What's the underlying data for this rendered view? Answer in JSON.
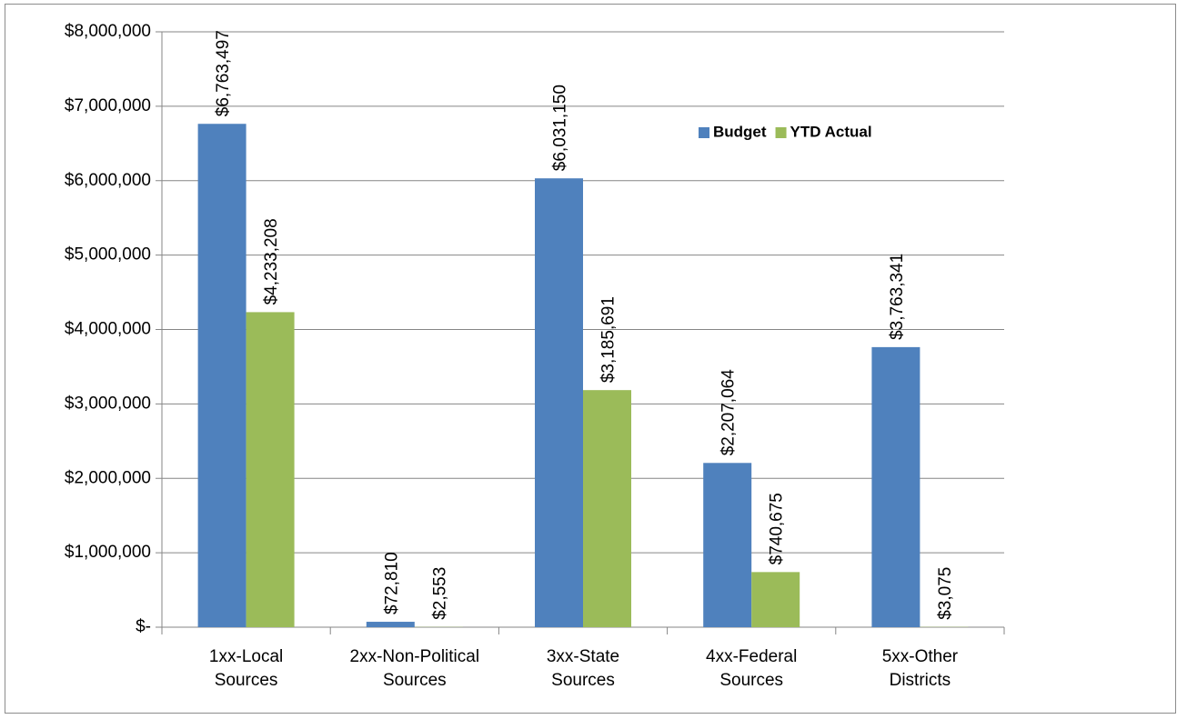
{
  "chart_data": {
    "type": "bar",
    "categories": [
      [
        "1xx-Local",
        "Sources"
      ],
      [
        "2xx-Non-Political",
        "Sources"
      ],
      [
        "3xx-State",
        "Sources"
      ],
      [
        "4xx-Federal",
        "Sources"
      ],
      [
        "5xx-Other",
        "Districts"
      ]
    ],
    "series": [
      {
        "name": "Budget",
        "color": "#4f81bd",
        "values": [
          6763497,
          72810,
          6031150,
          2207064,
          3763341
        ],
        "value_labels": [
          "$6,763,497",
          "$72,810",
          "$6,031,150",
          "$2,207,064",
          "$3,763,341"
        ]
      },
      {
        "name": "YTD Actual",
        "color": "#9bbb59",
        "values": [
          4233208,
          2553,
          3185691,
          740675,
          3075
        ],
        "value_labels": [
          "$4,233,208",
          "$2,553",
          "$3,185,691",
          "$740,675",
          "$3,075"
        ]
      }
    ],
    "ylim": [
      0,
      8000000
    ],
    "yticks": [
      {
        "value": 0,
        "label": "$-"
      },
      {
        "value": 1000000,
        "label": "$1,000,000"
      },
      {
        "value": 2000000,
        "label": "$2,000,000"
      },
      {
        "value": 3000000,
        "label": "$3,000,000"
      },
      {
        "value": 4000000,
        "label": "$4,000,000"
      },
      {
        "value": 5000000,
        "label": "$5,000,000"
      },
      {
        "value": 6000000,
        "label": "$6,000,000"
      },
      {
        "value": 7000000,
        "label": "$7,000,000"
      },
      {
        "value": 8000000,
        "label": "$8,000,000"
      }
    ],
    "grid": true,
    "legend": "top-right"
  }
}
